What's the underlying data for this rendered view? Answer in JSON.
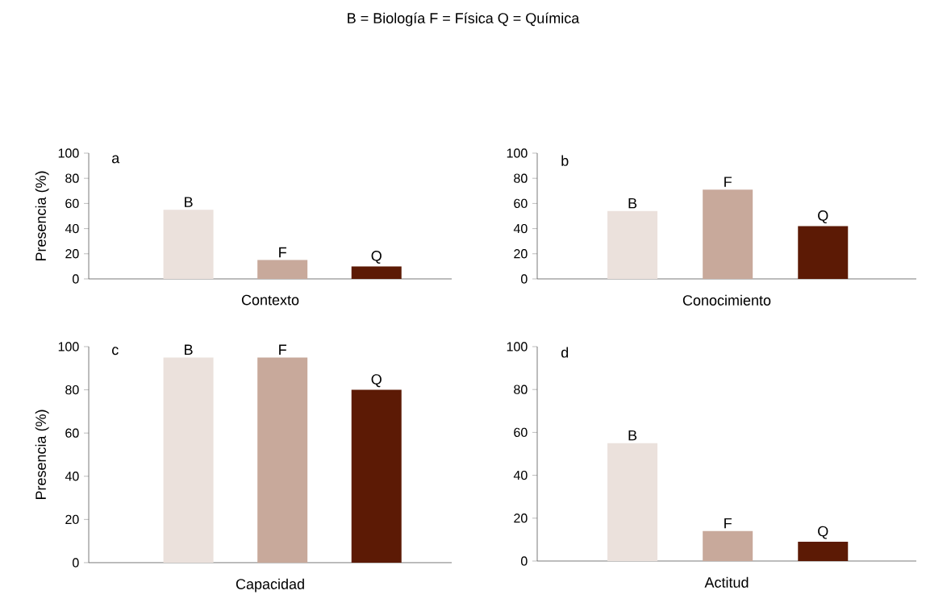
{
  "chart_data": [
    {
      "type": "bar",
      "title": "a",
      "xlabel": "Contexto",
      "ylabel": "Presencia (%)",
      "categories": [
        "B",
        "F",
        "Q"
      ],
      "values": [
        55,
        15,
        10
      ],
      "colors": [
        "#ebe1dc",
        "#c8a99b",
        "#5c1a05"
      ],
      "ylim": [
        0,
        100
      ],
      "yticks": [
        0,
        20,
        40,
        60,
        80,
        100
      ],
      "annotations": [
        "B = Biología  F = Física  Q = Química"
      ]
    },
    {
      "type": "bar",
      "title": "b",
      "xlabel": "Conocimiento",
      "categories": [
        "B",
        "F",
        "Q"
      ],
      "values": [
        54,
        71,
        42
      ],
      "colors": [
        "#ebe1dc",
        "#c8a99b",
        "#5c1a05"
      ],
      "ylim": [
        0,
        100
      ],
      "yticks": [
        0,
        20,
        40,
        60,
        80,
        100
      ]
    },
    {
      "type": "bar",
      "title": "c",
      "xlabel": "Capacidad",
      "ylabel": "Presencia (%)",
      "categories": [
        "B",
        "F",
        "Q"
      ],
      "values": [
        95,
        95,
        80
      ],
      "colors": [
        "#ebe1dc",
        "#c8a99b",
        "#5c1a05"
      ],
      "ylim": [
        0,
        100
      ],
      "yticks": [
        0,
        20,
        40,
        60,
        80,
        100
      ]
    },
    {
      "type": "bar",
      "title": "d",
      "xlabel": "Actitud",
      "categories": [
        "B",
        "F",
        "Q"
      ],
      "values": [
        55,
        14,
        9
      ],
      "colors": [
        "#ebe1dc",
        "#c8a99b",
        "#5c1a05"
      ],
      "ylim": [
        0,
        100
      ],
      "yticks": [
        0,
        20,
        40,
        60,
        80,
        100
      ]
    }
  ]
}
